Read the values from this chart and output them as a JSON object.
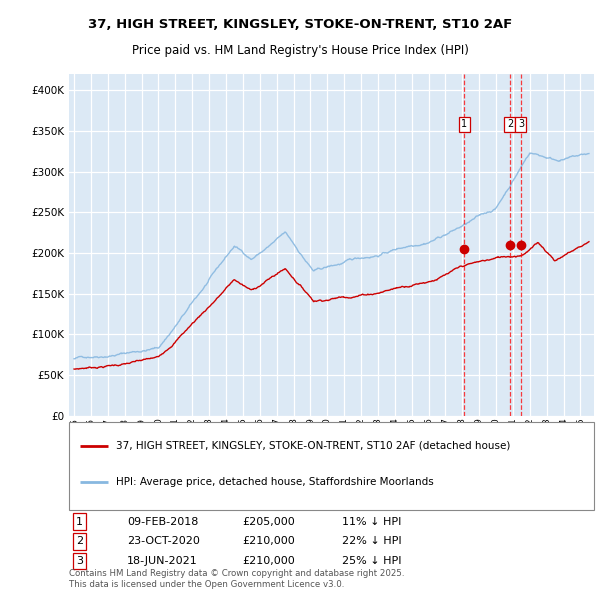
{
  "title_line1": "37, HIGH STREET, KINGSLEY, STOKE-ON-TRENT, ST10 2AF",
  "title_line2": "Price paid vs. HM Land Registry's House Price Index (HPI)",
  "bg_color": "#dce9f5",
  "hpi_color": "#88b8e0",
  "price_color": "#cc0000",
  "ylim": [
    0,
    420000
  ],
  "yticks": [
    0,
    50000,
    100000,
    150000,
    200000,
    250000,
    300000,
    350000,
    400000
  ],
  "legend_label_red": "37, HIGH STREET, KINGSLEY, STOKE-ON-TRENT, ST10 2AF (detached house)",
  "legend_label_blue": "HPI: Average price, detached house, Staffordshire Moorlands",
  "sale1_date": "09-FEB-2018",
  "sale1_price": "£205,000",
  "sale1_pct": "11% ↓ HPI",
  "sale2_date": "23-OCT-2020",
  "sale2_price": "£210,000",
  "sale2_pct": "22% ↓ HPI",
  "sale3_date": "18-JUN-2021",
  "sale3_price": "£210,000",
  "sale3_pct": "25% ↓ HPI",
  "footer": "Contains HM Land Registry data © Crown copyright and database right 2025.\nThis data is licensed under the Open Government Licence v3.0.",
  "sale1_x": 2018.1,
  "sale2_x": 2020.82,
  "sale3_x": 2021.47
}
